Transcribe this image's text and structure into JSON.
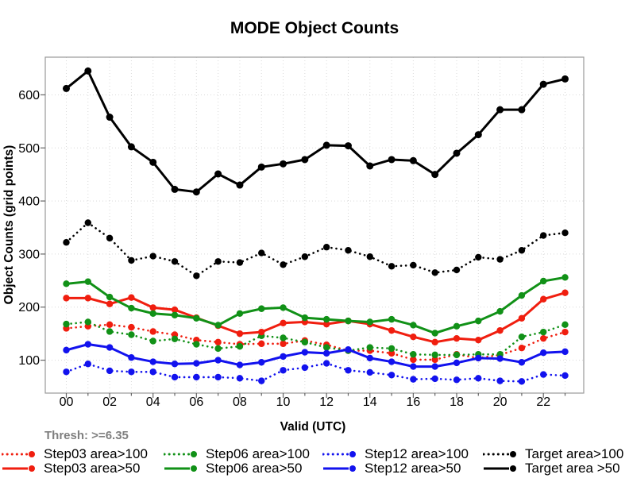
{
  "title": "MODE Object Counts",
  "thresh_label": "Thresh: >=6.35",
  "chart_data": {
    "type": "line",
    "title": "MODE Object Counts",
    "xlabel": "Valid (UTC)",
    "ylabel": "Object Counts (grid points)",
    "x_hours": [
      0,
      1,
      2,
      3,
      4,
      5,
      6,
      7,
      8,
      9,
      10,
      11,
      12,
      13,
      14,
      15,
      16,
      17,
      18,
      19,
      20,
      21,
      22,
      23
    ],
    "x_tick_labels": [
      "00",
      "02",
      "04",
      "06",
      "08",
      "10",
      "12",
      "14",
      "16",
      "18",
      "20",
      "22"
    ],
    "y_ticks": [
      100,
      200,
      300,
      400,
      500,
      600
    ],
    "xlim": [
      -0.97,
      23.86
    ],
    "ylim": [
      38,
      671
    ],
    "grid": true,
    "legend_position": "bottom",
    "series": [
      {
        "name": "Step03 area>100",
        "color": "#f01e0f",
        "line": "dotted",
        "marker_r": 4.2,
        "values": [
          160,
          164,
          167,
          162,
          154,
          148,
          138,
          134,
          130,
          131,
          131,
          137,
          129,
          118,
          118,
          113,
          101,
          101,
          111,
          104,
          110,
          123,
          141,
          153
        ]
      },
      {
        "name": "Step06 area>100",
        "color": "#119117",
        "line": "dotted",
        "marker_r": 4.2,
        "values": [
          168,
          172,
          154,
          148,
          136,
          140,
          130,
          122,
          126,
          146,
          142,
          134,
          124,
          118,
          124,
          122,
          111,
          110,
          110,
          111,
          111,
          144,
          153,
          167
        ]
      },
      {
        "name": "Step12 area>100",
        "color": "#1212ee",
        "line": "dotted",
        "marker_r": 4.2,
        "values": [
          78,
          93,
          80,
          78,
          78,
          68,
          68,
          68,
          66,
          61,
          81,
          86,
          94,
          81,
          77,
          72,
          64,
          65,
          63,
          66,
          61,
          60,
          73,
          71
        ]
      },
      {
        "name": "Target area>100",
        "color": "#000000",
        "line": "dotted",
        "marker_r": 4.2,
        "values": [
          322,
          359,
          330,
          288,
          296,
          286,
          259,
          286,
          284,
          302,
          280,
          295,
          313,
          307,
          295,
          277,
          279,
          265,
          270,
          294,
          290,
          307,
          335,
          340
        ]
      },
      {
        "name": "Step03 area>50",
        "color": "#f01e0f",
        "line": "solid",
        "marker_r": 4.2,
        "values": [
          217,
          217,
          206,
          218,
          199,
          195,
          180,
          165,
          150,
          153,
          170,
          172,
          168,
          174,
          168,
          156,
          144,
          134,
          141,
          138,
          156,
          179,
          215,
          227
        ]
      },
      {
        "name": "Step06 area>50",
        "color": "#119117",
        "line": "solid",
        "marker_r": 4.2,
        "values": [
          244,
          248,
          219,
          198,
          188,
          185,
          179,
          166,
          188,
          197,
          199,
          180,
          177,
          174,
          172,
          177,
          166,
          151,
          164,
          174,
          192,
          222,
          249,
          256
        ]
      },
      {
        "name": "Step12 area>50",
        "color": "#1212ee",
        "line": "solid",
        "marker_r": 4.2,
        "values": [
          119,
          130,
          124,
          105,
          97,
          93,
          94,
          100,
          91,
          96,
          107,
          115,
          113,
          120,
          104,
          97,
          88,
          88,
          95,
          104,
          103,
          96,
          114,
          116
        ]
      },
      {
        "name": "Target area >50",
        "color": "#000000",
        "line": "solid",
        "marker_r": 4.5,
        "values": [
          612,
          645,
          558,
          502,
          473,
          422,
          417,
          451,
          430,
          464,
          470,
          478,
          505,
          504,
          466,
          478,
          476,
          450,
          490,
          525,
          572,
          572,
          620,
          630
        ]
      }
    ]
  },
  "legend": {
    "items": [
      {
        "label": "Step03 area>100",
        "color": "#f01e0f",
        "line": "dotted"
      },
      {
        "label": "Step03 area>50",
        "color": "#f01e0f",
        "line": "solid"
      },
      {
        "label": "Step06 area>100",
        "color": "#119117",
        "line": "dotted"
      },
      {
        "label": "Step06 area>50",
        "color": "#119117",
        "line": "solid"
      },
      {
        "label": "Step12 area>100",
        "color": "#1212ee",
        "line": "dotted"
      },
      {
        "label": "Step12 area>50",
        "color": "#1212ee",
        "line": "solid"
      },
      {
        "label": "Target area>100",
        "color": "#000000",
        "line": "dotted"
      },
      {
        "label": "Target area >50",
        "color": "#000000",
        "line": "solid"
      }
    ]
  }
}
